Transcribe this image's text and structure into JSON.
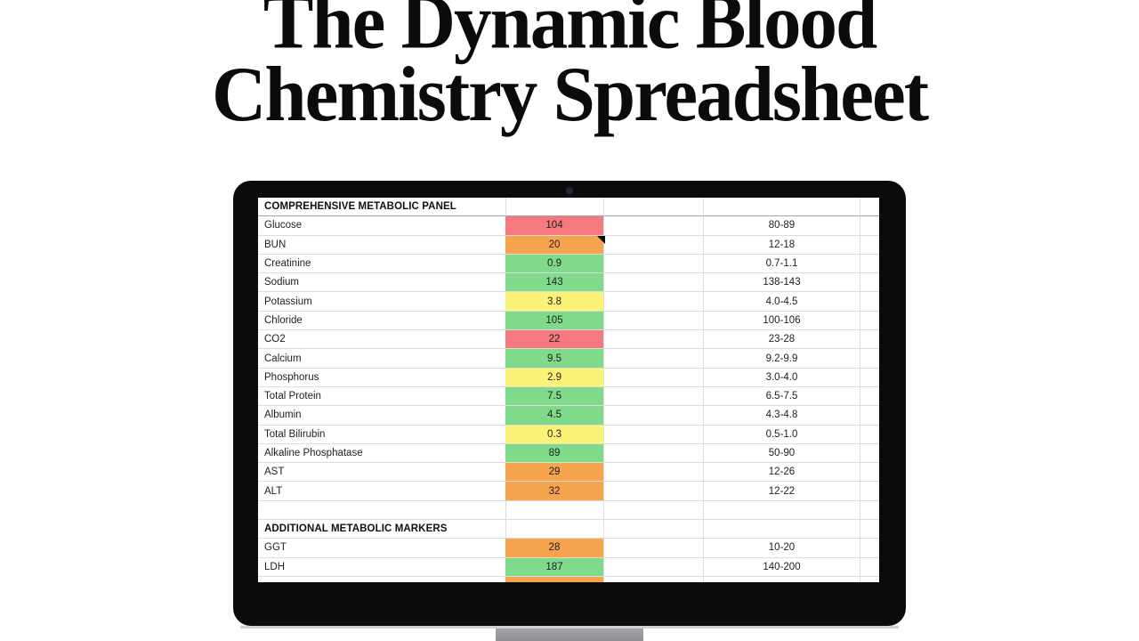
{
  "title": {
    "line1": "The Dynamic Blood",
    "line2": "Chemistry Spreadsheet"
  },
  "colors": {
    "red": "#F5797E",
    "orange": "#F7A44F",
    "green": "#7FDA89",
    "yellow": "#FAF377"
  },
  "spreadsheet": {
    "sections": [
      {
        "header": "COMPREHENSIVE METABOLIC PANEL",
        "rows": [
          {
            "name": "Glucose",
            "value": "104",
            "color": "red",
            "range": "80-89",
            "comment_marker": false
          },
          {
            "name": "BUN",
            "value": "20",
            "color": "orange",
            "range": "12-18",
            "comment_marker": true
          },
          {
            "name": "Creatinine",
            "value": "0.9",
            "color": "green",
            "range": "0.7-1.1",
            "comment_marker": false
          },
          {
            "name": "Sodium",
            "value": "143",
            "color": "green",
            "range": "138-143",
            "comment_marker": false
          },
          {
            "name": "Potassium",
            "value": "3.8",
            "color": "yellow",
            "range": "4.0-4.5",
            "comment_marker": false
          },
          {
            "name": "Chloride",
            "value": "105",
            "color": "green",
            "range": "100-106",
            "comment_marker": false
          },
          {
            "name": "CO2",
            "value": "22",
            "color": "red",
            "range": "23-28",
            "comment_marker": false
          },
          {
            "name": "Calcium",
            "value": "9.5",
            "color": "green",
            "range": "9.2-9.9",
            "comment_marker": false
          },
          {
            "name": "Phosphorus",
            "value": "2.9",
            "color": "yellow",
            "range": "3.0-4.0",
            "comment_marker": false
          },
          {
            "name": "Total Protein",
            "value": "7.5",
            "color": "green",
            "range": "6.5-7.5",
            "comment_marker": false
          },
          {
            "name": "Albumin",
            "value": "4.5",
            "color": "green",
            "range": "4.3-4.8",
            "comment_marker": false
          },
          {
            "name": "Total Bilirubin",
            "value": "0.3",
            "color": "yellow",
            "range": "0.5-1.0",
            "comment_marker": false
          },
          {
            "name": "Alkaline Phosphatase",
            "value": "89",
            "color": "green",
            "range": "50-90",
            "comment_marker": false
          },
          {
            "name": "AST",
            "value": "29",
            "color": "orange",
            "range": "12-26",
            "comment_marker": false
          },
          {
            "name": "ALT",
            "value": "32",
            "color": "orange",
            "range": "12-22",
            "comment_marker": false
          },
          {
            "name": "",
            "value": "",
            "color": null,
            "range": "",
            "comment_marker": false
          }
        ]
      },
      {
        "header": "ADDITIONAL METABOLIC MARKERS",
        "rows": [
          {
            "name": "GGT",
            "value": "28",
            "color": "orange",
            "range": "10-20",
            "comment_marker": false
          },
          {
            "name": "LDH",
            "value": "187",
            "color": "green",
            "range": "140-200",
            "comment_marker": false
          },
          {
            "name": "",
            "value": "",
            "color": "orange",
            "range": "",
            "comment_marker": false
          }
        ]
      }
    ]
  }
}
